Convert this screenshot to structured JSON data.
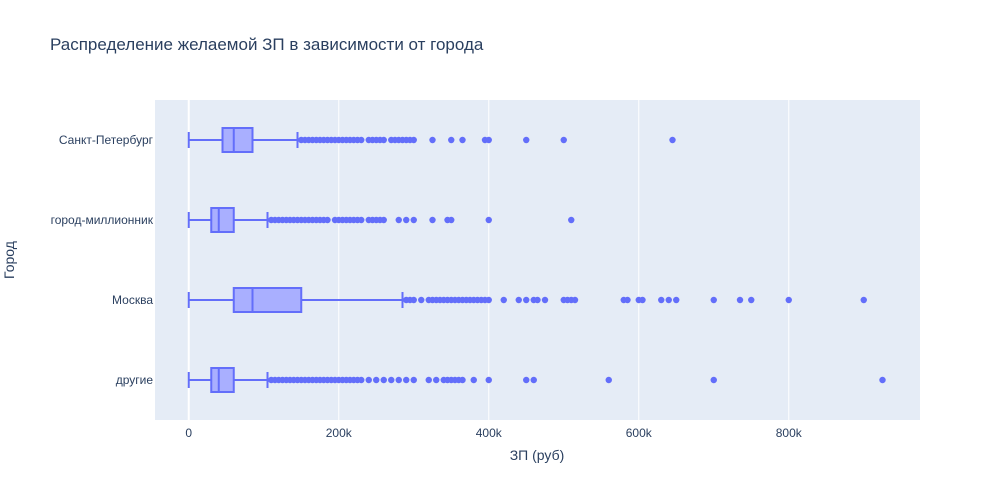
{
  "chart_data": {
    "type": "box",
    "orientation": "horizontal",
    "title": "Распределение желаемой ЗП в зависимости от города",
    "xlabel": "ЗП (руб)",
    "ylabel": "Город",
    "xlim": [
      -45000,
      975000
    ],
    "x_ticks": [
      {
        "value": 0,
        "label": "0"
      },
      {
        "value": 200000,
        "label": "200k"
      },
      {
        "value": 400000,
        "label": "400k"
      },
      {
        "value": 600000,
        "label": "600k"
      },
      {
        "value": 800000,
        "label": "800k"
      }
    ],
    "grid": true,
    "colors": {
      "plot_bg": "#e5ecf6",
      "grid": "#ffffff",
      "box_line": "#636efa",
      "box_fill": "#a9afff",
      "point": "#636efa",
      "text": "#2a3f5f"
    },
    "categories": [
      "Санкт-Петербург",
      "город-миллионник",
      "Москва",
      "другие"
    ],
    "boxes": [
      {
        "category": "Санкт-Петербург",
        "min": 0,
        "q1": 45000,
        "median": 60000,
        "q3": 85000,
        "max": 145000,
        "outliers": [
          150000,
          155000,
          160000,
          165000,
          170000,
          175000,
          180000,
          185000,
          190000,
          195000,
          200000,
          205000,
          210000,
          215000,
          220000,
          225000,
          230000,
          240000,
          245000,
          250000,
          255000,
          260000,
          270000,
          275000,
          280000,
          285000,
          290000,
          295000,
          300000,
          325000,
          350000,
          365000,
          395000,
          400000,
          450000,
          500000,
          645000
        ]
      },
      {
        "category": "город-миллионник",
        "min": 0,
        "q1": 30000,
        "median": 40000,
        "q3": 60000,
        "max": 105000,
        "outliers": [
          110000,
          115000,
          120000,
          125000,
          130000,
          135000,
          140000,
          145000,
          150000,
          155000,
          160000,
          165000,
          170000,
          175000,
          180000,
          185000,
          195000,
          200000,
          205000,
          210000,
          215000,
          220000,
          225000,
          230000,
          240000,
          245000,
          250000,
          255000,
          260000,
          280000,
          290000,
          300000,
          325000,
          345000,
          350000,
          400000,
          510000
        ]
      },
      {
        "category": "Москва",
        "min": 0,
        "q1": 60000,
        "median": 85000,
        "q3": 150000,
        "max": 285000,
        "outliers": [
          290000,
          295000,
          300000,
          310000,
          320000,
          325000,
          330000,
          335000,
          340000,
          345000,
          350000,
          355000,
          360000,
          365000,
          370000,
          375000,
          380000,
          385000,
          390000,
          395000,
          400000,
          420000,
          440000,
          450000,
          460000,
          465000,
          475000,
          500000,
          505000,
          510000,
          515000,
          580000,
          585000,
          600000,
          605000,
          630000,
          640000,
          650000,
          700000,
          735000,
          750000,
          800000,
          900000
        ]
      },
      {
        "category": "другие",
        "min": 0,
        "q1": 30000,
        "median": 40000,
        "q3": 60000,
        "max": 105000,
        "outliers": [
          110000,
          115000,
          120000,
          125000,
          130000,
          135000,
          140000,
          145000,
          150000,
          155000,
          160000,
          165000,
          170000,
          175000,
          180000,
          185000,
          190000,
          195000,
          200000,
          205000,
          210000,
          215000,
          220000,
          225000,
          230000,
          240000,
          250000,
          260000,
          270000,
          280000,
          290000,
          300000,
          320000,
          330000,
          340000,
          345000,
          350000,
          355000,
          360000,
          365000,
          380000,
          400000,
          450000,
          460000,
          560000,
          700000,
          925000
        ]
      }
    ]
  }
}
